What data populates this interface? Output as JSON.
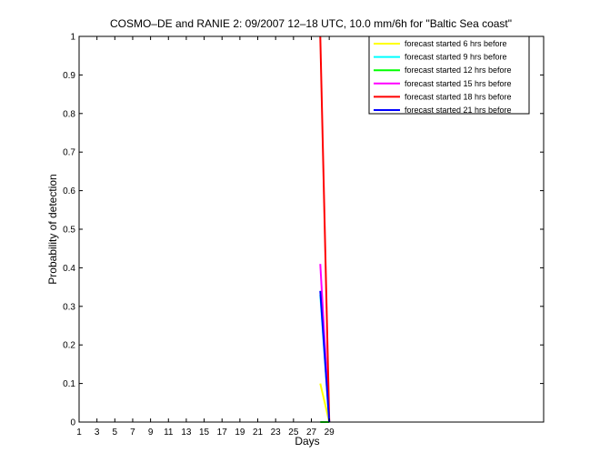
{
  "chart_data": {
    "type": "line",
    "title": "COSMO–DE and RANIE 2: 09/2007 12–18 UTC, 10.0 mm/6h for \"Baltic Sea coast\"",
    "xlabel": "Days",
    "ylabel": "Probability of detection",
    "xlim": [
      1,
      53
    ],
    "ylim": [
      0,
      1
    ],
    "xticks": [
      1,
      3,
      5,
      7,
      9,
      11,
      13,
      15,
      17,
      19,
      21,
      23,
      25,
      27,
      29
    ],
    "yticks": [
      0,
      0.1,
      0.2,
      0.3,
      0.4,
      0.5,
      0.6,
      0.7,
      0.8,
      0.9,
      1
    ],
    "ytick_labels": [
      "0",
      "0.1",
      "0.2",
      "0.3",
      "0.4",
      "0.5",
      "0.6",
      "0.7",
      "0.8",
      "0.9",
      "1"
    ],
    "legend_position": "top-right",
    "series": [
      {
        "name": "forecast started 6 hrs before",
        "color": "#ffff00",
        "x": [
          28,
          29
        ],
        "y": [
          0.1,
          0
        ]
      },
      {
        "name": "forecast started 9 hrs before",
        "color": "#00ffff",
        "x": [
          28,
          29
        ],
        "y": [
          0.33,
          0
        ]
      },
      {
        "name": "forecast started 12 hrs before",
        "color": "#00ff00",
        "x": [
          28,
          29
        ],
        "y": [
          0,
          0
        ]
      },
      {
        "name": "forecast started 15 hrs before",
        "color": "#ff00ff",
        "x": [
          28,
          29
        ],
        "y": [
          0.41,
          0
        ]
      },
      {
        "name": "forecast started 18 hrs before",
        "color": "#ff0000",
        "x": [
          28,
          29
        ],
        "y": [
          1,
          0
        ]
      },
      {
        "name": "forecast started 21 hrs before",
        "color": "#0000ff",
        "x": [
          28,
          29
        ],
        "y": [
          0.34,
          0
        ]
      }
    ]
  }
}
